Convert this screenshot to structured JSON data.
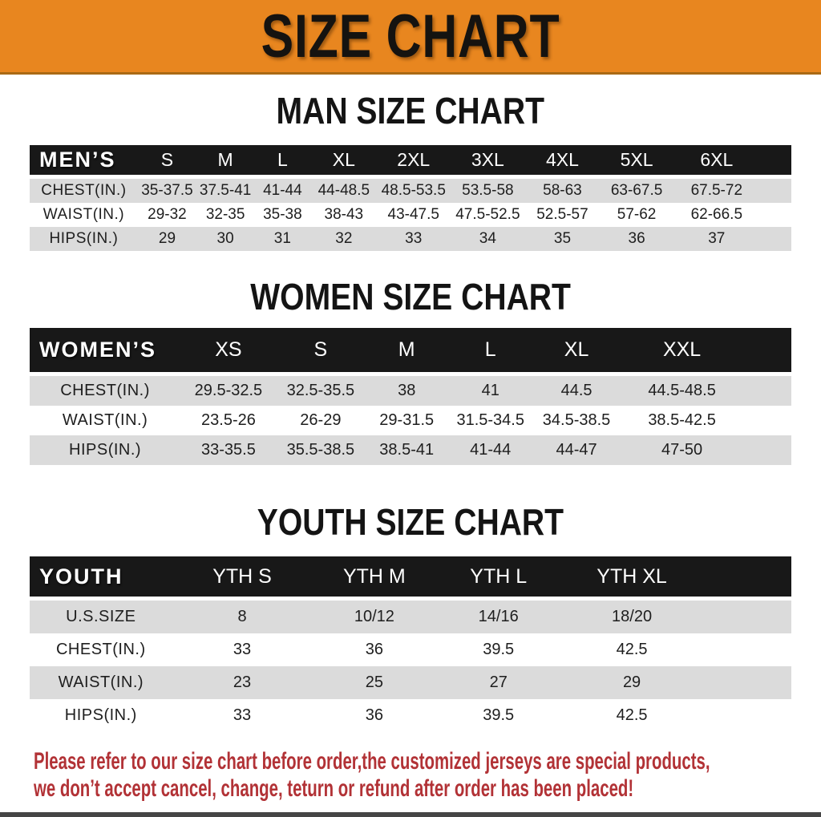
{
  "banner": {
    "title": "SIZE CHART"
  },
  "sections": [
    {
      "id": "man",
      "title": "MAN SIZE CHART",
      "header_label": "MEN’S",
      "columns": [
        "S",
        "M",
        "L",
        "XL",
        "2XL",
        "3XL",
        "4XL",
        "5XL",
        "6XL"
      ],
      "rows": [
        {
          "label": "CHEST(IN.)",
          "values": [
            "35-37.5",
            "37.5-41",
            "41-44",
            "44-48.5",
            "48.5-53.5",
            "53.5-58",
            "58-63",
            "63-67.5",
            "67.5-72"
          ]
        },
        {
          "label": "WAIST(IN.)",
          "values": [
            "29-32",
            "32-35",
            "35-38",
            "38-43",
            "43-47.5",
            "47.5-52.5",
            "52.5-57",
            "57-62",
            "62-66.5"
          ]
        },
        {
          "label": "HIPS(IN.)",
          "values": [
            "29",
            "30",
            "31",
            "32",
            "33",
            "34",
            "35",
            "36",
            "37"
          ]
        }
      ]
    },
    {
      "id": "women",
      "title": "WOMEN SIZE CHART",
      "header_label": "WOMEN’S",
      "columns": [
        "XS",
        "S",
        "M",
        "L",
        "XL",
        "XXL"
      ],
      "rows": [
        {
          "label": "CHEST(IN.)",
          "values": [
            "29.5-32.5",
            "32.5-35.5",
            "38",
            "41",
            "44.5",
            "44.5-48.5"
          ]
        },
        {
          "label": "WAIST(IN.)",
          "values": [
            "23.5-26",
            "26-29",
            "29-31.5",
            "31.5-34.5",
            "34.5-38.5",
            "38.5-42.5"
          ]
        },
        {
          "label": "HIPS(IN.)",
          "values": [
            "33-35.5",
            "35.5-38.5",
            "38.5-41",
            "41-44",
            "44-47",
            "47-50"
          ]
        }
      ]
    },
    {
      "id": "youth",
      "title": "YOUTH SIZE CHART",
      "header_label": "YOUTH",
      "columns": [
        "YTH S",
        "YTH M",
        "YTH L",
        "YTH XL"
      ],
      "rows": [
        {
          "label": "U.S.SIZE",
          "values": [
            "8",
            "10/12",
            "14/16",
            "18/20"
          ]
        },
        {
          "label": "CHEST(IN.)",
          "values": [
            "33",
            "36",
            "39.5",
            "42.5"
          ]
        },
        {
          "label": "WAIST(IN.)",
          "values": [
            "23",
            "25",
            "27",
            "29"
          ]
        },
        {
          "label": "HIPS(IN.)",
          "values": [
            "33",
            "36",
            "39.5",
            "42.5"
          ]
        }
      ]
    }
  ],
  "disclaimer": {
    "line1": "Please refer to our size chart before order,the customized jerseys are special products,",
    "line2": "we don’t accept cancel, change, teturn or refund after order has been placed!"
  },
  "colors": {
    "banner_orange": "#e8861f",
    "table_header_black": "#181818",
    "row_gray": "#dbdbdb",
    "disclaimer_red": "#b23236"
  }
}
